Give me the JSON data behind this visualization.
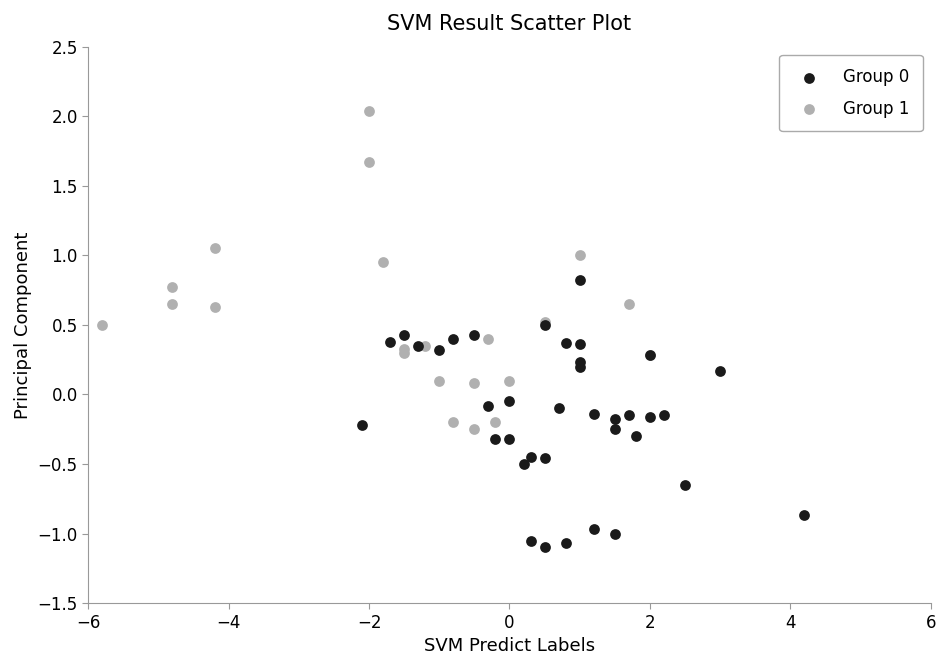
{
  "title": "SVM Result Scatter Plot",
  "xlabel": "SVM Predict Labels",
  "ylabel": "Principal Component",
  "xlim": [
    -6,
    6
  ],
  "ylim": [
    -1.5,
    2.5
  ],
  "xticks": [
    -6,
    -4,
    -2,
    0,
    2,
    4,
    6
  ],
  "yticks": [
    -1.5,
    -1.0,
    -0.5,
    0.0,
    0.5,
    1.0,
    1.5,
    2.0,
    2.5
  ],
  "group0_color": "#1a1a1a",
  "group1_color": "#b0b0b0",
  "group0_x": [
    1.0,
    -2.1,
    -1.7,
    -1.5,
    -1.3,
    -1.0,
    -0.8,
    -0.5,
    -0.3,
    -0.2,
    0.0,
    0.0,
    0.2,
    0.3,
    0.5,
    0.5,
    0.7,
    0.8,
    1.0,
    1.0,
    1.0,
    1.2,
    1.5,
    1.5,
    1.7,
    1.8,
    2.0,
    2.0,
    2.2,
    2.5,
    3.0,
    4.2,
    0.3,
    0.5,
    0.8,
    1.2,
    1.5
  ],
  "group0_y": [
    0.82,
    -0.22,
    0.38,
    0.43,
    0.35,
    0.32,
    0.4,
    0.43,
    -0.08,
    -0.32,
    -0.05,
    -0.32,
    -0.5,
    -0.45,
    0.5,
    -0.46,
    -0.1,
    0.37,
    0.36,
    0.23,
    0.2,
    -0.14,
    -0.18,
    -0.25,
    -0.15,
    -0.3,
    0.28,
    -0.16,
    -0.15,
    -0.65,
    0.17,
    -0.87,
    -1.05,
    -1.1,
    -1.07,
    -0.97,
    -1.0
  ],
  "group1_x": [
    -5.8,
    -4.8,
    -4.8,
    -4.2,
    -4.2,
    -2.0,
    -2.0,
    -1.8,
    -1.5,
    -1.5,
    -1.2,
    -1.0,
    -0.8,
    -0.5,
    -0.5,
    -0.3,
    -0.2,
    0.0,
    0.5,
    1.0,
    1.7,
    2.0
  ],
  "group1_y": [
    0.5,
    0.77,
    0.65,
    1.05,
    0.63,
    2.04,
    1.67,
    0.95,
    0.33,
    0.3,
    0.35,
    0.1,
    -0.2,
    -0.25,
    0.08,
    0.4,
    -0.2,
    0.1,
    0.52,
    1.0,
    0.65,
    0.28
  ],
  "marker_size": 60,
  "title_fontsize": 15,
  "label_fontsize": 13,
  "tick_fontsize": 12,
  "legend_fontsize": 12,
  "bg_color": "#ffffff",
  "fig_width": 9.5,
  "fig_height": 6.69
}
